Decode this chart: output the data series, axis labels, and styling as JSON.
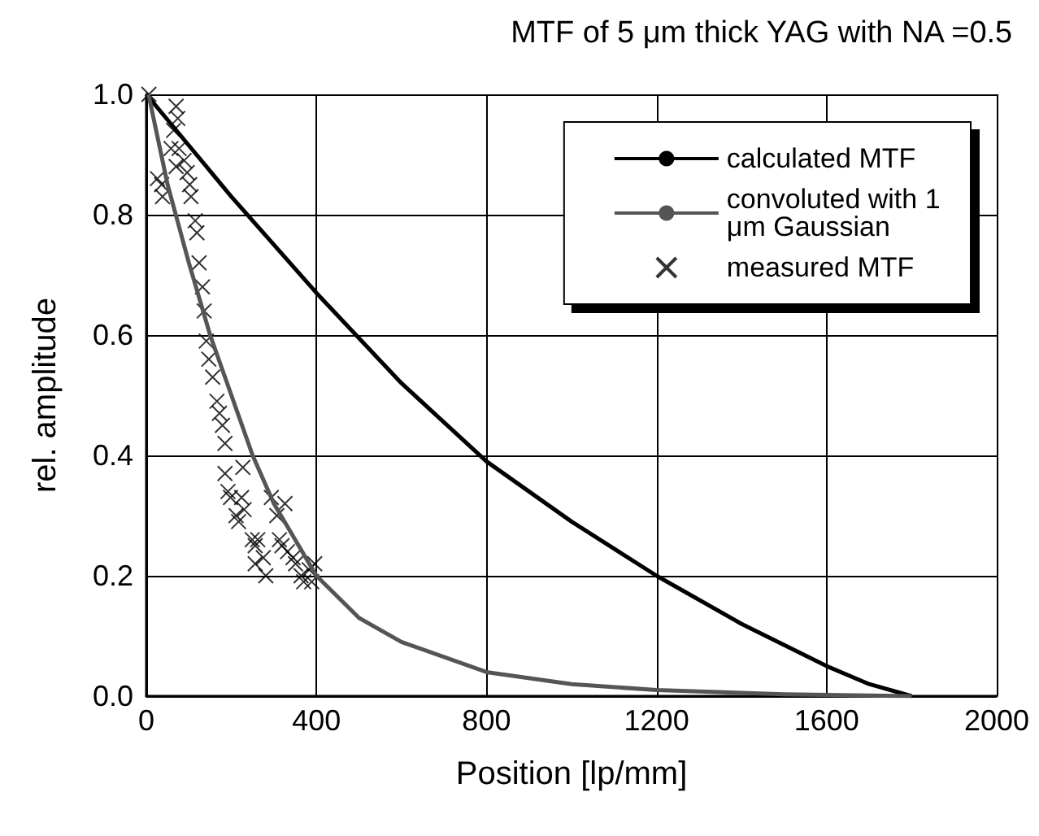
{
  "chart_data": {
    "type": "line",
    "title": "MTF of 5 μm thick YAG with NA =0.5",
    "xlabel": "Position [lp/mm]",
    "ylabel": "rel. amplitude",
    "xlim": [
      0,
      2000
    ],
    "xticks": [
      0,
      400,
      800,
      1200,
      1600,
      2000
    ],
    "ylim": [
      0,
      1
    ],
    "yticks": [
      {
        "value": 0,
        "label": "0.0"
      },
      0.2,
      0.4,
      0.6,
      0.8,
      {
        "value": 1,
        "label": "1.0"
      }
    ],
    "grid": true,
    "legend": "top right",
    "series": [
      {
        "name": "calculated MTF",
        "color": "#000000",
        "marker": "none",
        "x": [
          0,
          200,
          400,
          600,
          800,
          1000,
          1200,
          1400,
          1600,
          1700,
          1800
        ],
        "values": [
          1.0,
          0.83,
          0.67,
          0.52,
          0.39,
          0.29,
          0.2,
          0.12,
          0.05,
          0.02,
          0.0
        ]
      },
      {
        "name": "convoluted with 1 μm Gaussian",
        "color": "#555555",
        "marker": "none",
        "x": [
          5,
          50,
          100,
          150,
          200,
          250,
          300,
          400,
          500,
          600,
          800,
          1000,
          1200,
          1500,
          1800
        ],
        "values": [
          1.0,
          0.85,
          0.72,
          0.6,
          0.5,
          0.4,
          0.32,
          0.2,
          0.13,
          0.09,
          0.04,
          0.02,
          0.01,
          0.003,
          0.0
        ]
      },
      {
        "name": "measured MTF",
        "type": "scatter",
        "color": "#000000",
        "marker": "cross",
        "x": [
          6,
          70,
          74,
          64,
          77,
          58,
          70,
          89,
          96,
          26,
          36,
          38,
          102,
          105,
          115,
          119,
          124,
          132,
          136,
          141,
          147,
          156,
          166,
          172,
          179,
          185,
          185,
          192,
          198,
          227,
          224,
          230,
          211,
          217,
          249,
          256,
          262,
          256,
          275,
          281,
          294,
          326,
          307,
          313,
          319,
          332,
          345,
          351,
          364,
          370,
          383,
          396,
          389
        ],
        "values": [
          1.0,
          0.98,
          0.96,
          0.94,
          0.91,
          0.91,
          0.88,
          0.89,
          0.87,
          0.86,
          0.85,
          0.83,
          0.85,
          0.83,
          0.79,
          0.77,
          0.72,
          0.68,
          0.64,
          0.59,
          0.56,
          0.53,
          0.49,
          0.47,
          0.45,
          0.42,
          0.37,
          0.34,
          0.33,
          0.38,
          0.33,
          0.31,
          0.3,
          0.29,
          0.26,
          0.25,
          0.26,
          0.22,
          0.23,
          0.2,
          0.33,
          0.32,
          0.3,
          0.26,
          0.25,
          0.24,
          0.23,
          0.22,
          0.2,
          0.19,
          0.21,
          0.22,
          0.19
        ]
      }
    ]
  }
}
